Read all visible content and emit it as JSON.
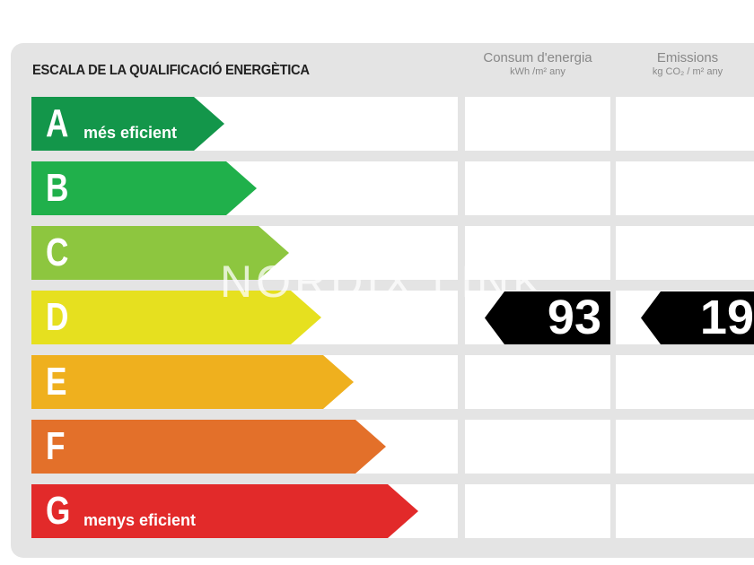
{
  "title": "ESCALA DE LA QUALIFICACIÓ ENERGÈTICA",
  "columns": [
    {
      "label": "Consum d'energia",
      "unit": "kWh /m² any"
    },
    {
      "label": "Emissions",
      "unit": "kg CO₂ / m² any"
    }
  ],
  "ratings": [
    {
      "letter": "A",
      "note": "més eficient",
      "color": "#13964a"
    },
    {
      "letter": "B",
      "note": "",
      "color": "#20b04b"
    },
    {
      "letter": "C",
      "note": "",
      "color": "#8dc63f"
    },
    {
      "letter": "D",
      "note": "",
      "color": "#e6e01f"
    },
    {
      "letter": "E",
      "note": "",
      "color": "#efb01e"
    },
    {
      "letter": "F",
      "note": "",
      "color": "#e3702a"
    },
    {
      "letter": "G",
      "note": "menys eficient",
      "color": "#e22a2a"
    }
  ],
  "current": {
    "rating": "D",
    "consumption": "93",
    "emissions": "19"
  },
  "watermark": "NORDIX LINK"
}
